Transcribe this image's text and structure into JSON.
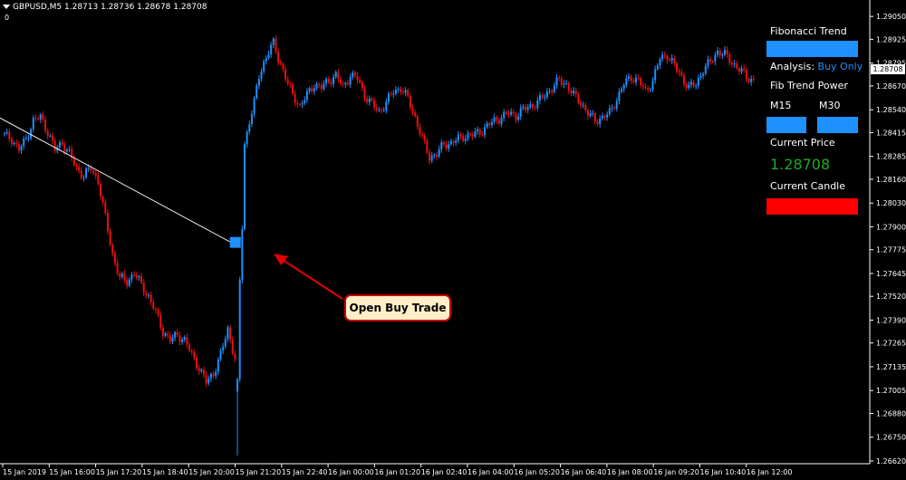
{
  "header": {
    "symbol_line": "GBPUSD,M5  1.28713 1.28736 1.28678 1.28708",
    "subwindow": "0"
  },
  "panel": {
    "title": "Fibonacci Trend",
    "analysis_label": "Analysis:",
    "analysis_value": "Buy Only",
    "power_label": "Fib Trend Power",
    "tf1": "M15",
    "tf2": "M30",
    "price_label": "Current Price",
    "price_value": "1.28708",
    "candle_label": "Current Candle",
    "colors": {
      "bar_blue": "#1e90ff",
      "candle_red": "#ff0000",
      "price_green": "#22aa22",
      "analysis_blue": "#1e90ff"
    }
  },
  "callout": {
    "text": "Open Buy Trade"
  },
  "current_price_tag": "1.28708",
  "chart_data": {
    "type": "candlestick",
    "ylim": [
      1.2662,
      1.2912
    ],
    "y_ticks": [
      "1.29050",
      "1.28925",
      "1.28795",
      "1.28670",
      "1.28540",
      "1.28415",
      "1.28285",
      "1.28160",
      "1.28030",
      "1.27900",
      "1.27775",
      "1.27645",
      "1.27520",
      "1.27390",
      "1.27265",
      "1.27135",
      "1.27005",
      "1.26880",
      "1.26750",
      "1.26620"
    ],
    "x_ticks": [
      "15 Jan 2019",
      "15 Jan 16:00",
      "15 Jan 17:20",
      "15 Jan 18:40",
      "15 Jan 20:00",
      "15 Jan 21:20",
      "15 Jan 22:40",
      "16 Jan 00:00",
      "16 Jan 01:20",
      "16 Jan 02:40",
      "16 Jan 04:00",
      "16 Jan 05:20",
      "16 Jan 06:40",
      "16 Jan 08:00",
      "16 Jan 09:20",
      "16 Jan 10:40",
      "16 Jan 12:00"
    ],
    "close_path": [
      [
        0,
        1.284
      ],
      [
        3,
        1.2838
      ],
      [
        6,
        1.2832
      ],
      [
        9,
        1.2838
      ],
      [
        12,
        1.2848
      ],
      [
        15,
        1.285
      ],
      [
        18,
        1.2842
      ],
      [
        21,
        1.2832
      ],
      [
        24,
        1.2836
      ],
      [
        27,
        1.283
      ],
      [
        30,
        1.2822
      ],
      [
        33,
        1.2818
      ],
      [
        36,
        1.2822
      ],
      [
        39,
        1.2815
      ],
      [
        42,
        1.2795
      ],
      [
        45,
        1.2775
      ],
      [
        48,
        1.2762
      ],
      [
        51,
        1.276
      ],
      [
        54,
        1.2765
      ],
      [
        57,
        1.2758
      ],
      [
        60,
        1.2752
      ],
      [
        63,
        1.2743
      ],
      [
        66,
        1.2733
      ],
      [
        69,
        1.2728
      ],
      [
        72,
        1.2731
      ],
      [
        75,
        1.2728
      ],
      [
        78,
        1.272
      ],
      [
        81,
        1.2713
      ],
      [
        84,
        1.2705
      ],
      [
        87,
        1.271
      ],
      [
        90,
        1.272
      ],
      [
        93,
        1.2734
      ],
      [
        96,
        1.2718
      ],
      [
        97,
        1.2704
      ],
      [
        98,
        1.276
      ],
      [
        99,
        1.279
      ],
      [
        100,
        1.2835
      ],
      [
        102,
        1.2848
      ],
      [
        104,
        1.2858
      ],
      [
        106,
        1.2872
      ],
      [
        108,
        1.288
      ],
      [
        110,
        1.2886
      ],
      [
        112,
        1.289
      ],
      [
        114,
        1.2882
      ],
      [
        116,
        1.2876
      ],
      [
        118,
        1.2868
      ],
      [
        120,
        1.2862
      ],
      [
        123,
        1.2856
      ],
      [
        126,
        1.2862
      ],
      [
        129,
        1.2868
      ],
      [
        132,
        1.2866
      ],
      [
        135,
        1.287
      ],
      [
        138,
        1.2873
      ],
      [
        141,
        1.2866
      ],
      [
        144,
        1.2873
      ],
      [
        147,
        1.2871
      ],
      [
        150,
        1.2862
      ],
      [
        153,
        1.2857
      ],
      [
        156,
        1.2853
      ],
      [
        159,
        1.2858
      ],
      [
        162,
        1.2864
      ],
      [
        165,
        1.2866
      ],
      [
        168,
        1.286
      ],
      [
        171,
        1.285
      ],
      [
        174,
        1.2838
      ],
      [
        177,
        1.2828
      ],
      [
        180,
        1.283
      ],
      [
        183,
        1.2835
      ],
      [
        186,
        1.2836
      ],
      [
        189,
        1.2838
      ],
      [
        192,
        1.284
      ],
      [
        195,
        1.284
      ],
      [
        198,
        1.2842
      ],
      [
        201,
        1.2845
      ],
      [
        204,
        1.2848
      ],
      [
        207,
        1.285
      ],
      [
        210,
        1.2852
      ],
      [
        213,
        1.2851
      ],
      [
        216,
        1.2854
      ],
      [
        219,
        1.2856
      ],
      [
        222,
        1.2858
      ],
      [
        225,
        1.2862
      ],
      [
        228,
        1.2866
      ],
      [
        231,
        1.287
      ],
      [
        234,
        1.2868
      ],
      [
        237,
        1.2862
      ],
      [
        240,
        1.2858
      ],
      [
        243,
        1.2852
      ],
      [
        246,
        1.2848
      ],
      [
        249,
        1.285
      ],
      [
        252,
        1.2852
      ],
      [
        255,
        1.286
      ],
      [
        258,
        1.2868
      ],
      [
        261,
        1.2872
      ],
      [
        264,
        1.287
      ],
      [
        267,
        1.2864
      ],
      [
        270,
        1.287
      ],
      [
        273,
        1.2882
      ],
      [
        276,
        1.2884
      ],
      [
        279,
        1.2878
      ],
      [
        282,
        1.2872
      ],
      [
        285,
        1.2866
      ],
      [
        288,
        1.2868
      ],
      [
        291,
        1.2876
      ],
      [
        294,
        1.288
      ],
      [
        297,
        1.2886
      ],
      [
        300,
        1.2884
      ],
      [
        303,
        1.288
      ],
      [
        306,
        1.2876
      ],
      [
        309,
        1.2872
      ],
      [
        312,
        1.287
      ]
    ],
    "trendline": {
      "start": [
        0,
        1.28495
      ],
      "end": [
        95,
        1.2781
      ]
    },
    "entry_marker": {
      "bar": 95,
      "price": 1.2781
    }
  }
}
